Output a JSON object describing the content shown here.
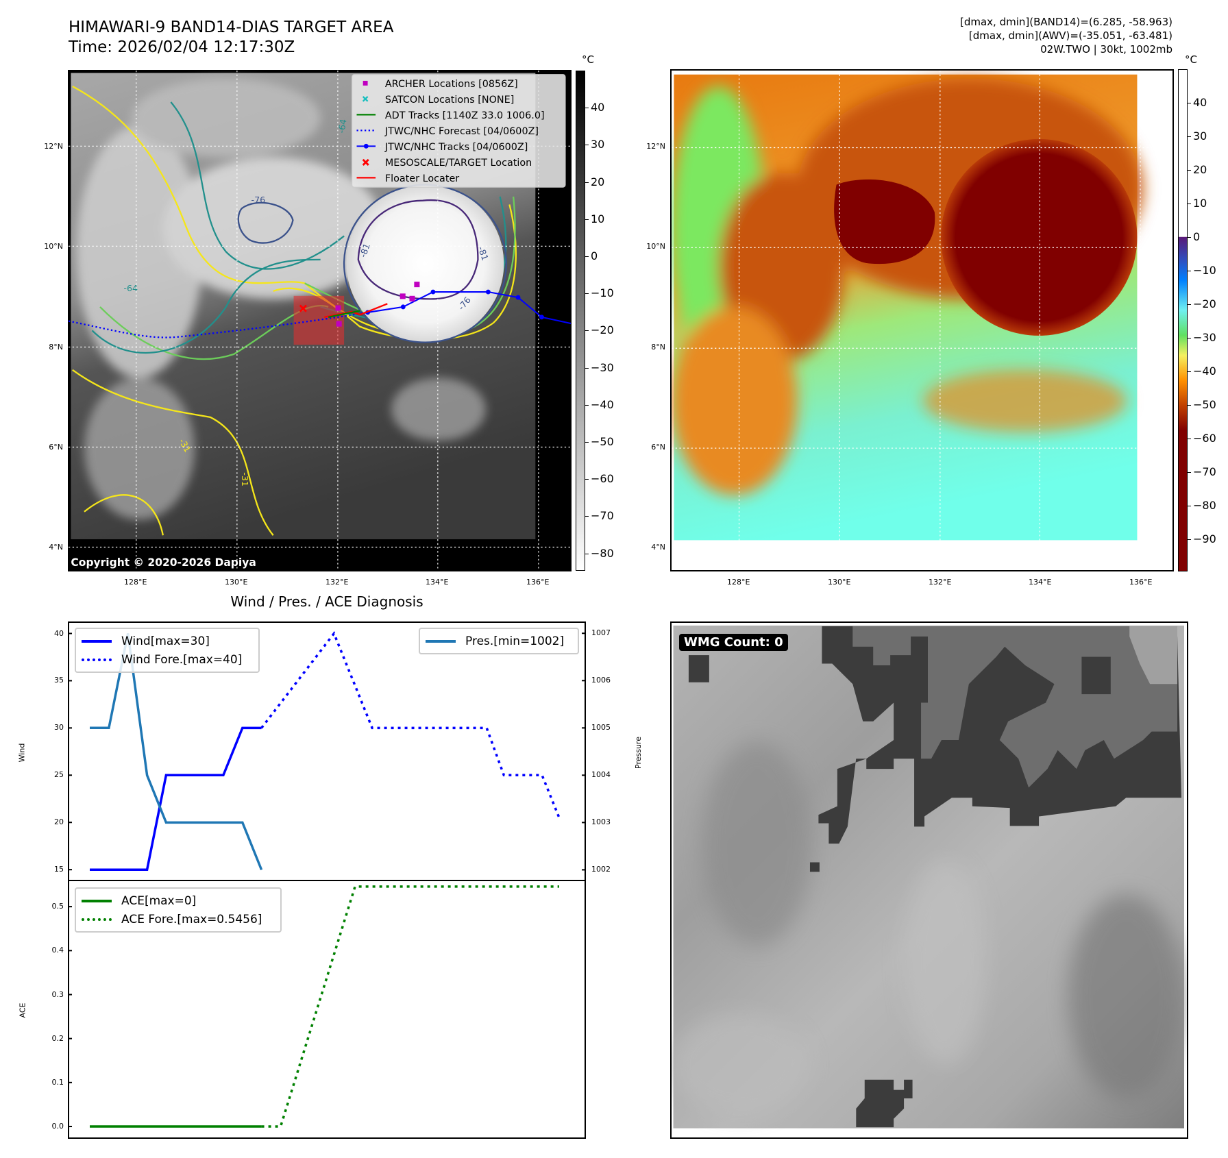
{
  "header": {
    "title": "HIMAWARI-9 BAND14-DIAS TARGET AREA",
    "time": "Time: 2026/02/04 12:17:30Z",
    "info_lines": [
      "[dmax, dmin](BAND14)=(6.285, -58.963)",
      "[dmax, dmin](AWV)=(-35.051, -63.481)",
      "02W.TWO | 30kt, 1002mb"
    ]
  },
  "maps": {
    "lat_ticks": [
      "12°N",
      "10°N",
      "8°N",
      "6°N",
      "4°N"
    ],
    "lon_ticks": [
      "128°E",
      "130°E",
      "132°E",
      "134°E",
      "136°E"
    ],
    "unit": "°C",
    "copyright": "Copyright © 2020-2026 Dapiya",
    "legend": [
      "ARCHER Locations [0856Z]",
      "SATCON Locations [NONE]",
      "ADT Tracks [1140Z 33.0 1006.0]",
      "JTWC/NHC Forecast [04/0600Z]",
      "JTWC/NHC Tracks [04/0600Z]",
      "MESOSCALE/TARGET Location",
      "Floater Locater"
    ],
    "contour_labels": [
      "-64",
      "-76",
      "-81",
      "-81",
      "-76",
      "-64",
      "-31",
      "-31"
    ],
    "left_colorbar": {
      "ticks": [
        40,
        30,
        20,
        10,
        0,
        -10,
        -20,
        -30,
        -40,
        -50,
        -60,
        -70,
        -80
      ],
      "range": [
        50,
        -84.7
      ]
    },
    "right_colorbar": {
      "ticks": [
        40,
        30,
        20,
        10,
        0,
        -10,
        -20,
        -30,
        -40,
        -50,
        -60,
        -70,
        -80,
        -90
      ],
      "range": [
        50,
        -99.6
      ]
    },
    "colors": {
      "archer": "#c000c0",
      "satcon": "#17bfbf",
      "adt": "#008000",
      "jtwc": "#0000ff",
      "target": "#ff0000"
    }
  },
  "wmg": {
    "label": "WMG Count: 0"
  },
  "chart_data": [
    {
      "type": "line",
      "title": "Wind / Pres. / ACE Diagnosis",
      "ylabel": "Wind",
      "ylabel_right": "Pressure",
      "xlim": [
        -1.15,
        26
      ],
      "ylim": [
        13.78,
        41.27
      ],
      "ylim_right": [
        1001.76,
        1007.25
      ],
      "yticks": [
        "15",
        "20",
        "25",
        "30",
        "35",
        "40"
      ],
      "yticks_right": [
        "1002",
        "1003",
        "1004",
        "1005",
        "1006",
        "1007"
      ],
      "series": [
        {
          "name": "Wind[max=30]",
          "axis": "left",
          "style": "solid",
          "color": "#0000ff",
          "x": [
            0,
            1,
            2,
            3,
            4,
            5,
            6,
            7,
            8,
            9
          ],
          "values": [
            15,
            15,
            15,
            15,
            25,
            25,
            25,
            25,
            30,
            30
          ]
        },
        {
          "name": "Wind Fore.[max=40]",
          "axis": "left",
          "style": "dotted",
          "color": "#0000ff",
          "x": [
            9,
            12.8,
            14.8,
            20.8,
            21.7,
            23.7,
            24.6
          ],
          "values": [
            30,
            40,
            30,
            30,
            25,
            25,
            20.5
          ]
        },
        {
          "name": "Pres.[min=1002]",
          "axis": "right",
          "style": "solid",
          "color": "#1f77b4",
          "x": [
            0,
            1,
            2,
            3,
            4,
            8,
            9
          ],
          "values": [
            1005,
            1005,
            1007,
            1004,
            1003,
            1003,
            1002
          ]
        }
      ]
    },
    {
      "type": "line",
      "ylabel": "ACE",
      "xlim": [
        -1.15,
        26
      ],
      "ylim": [
        -0.028,
        0.561
      ],
      "yticks": [
        "0.0",
        "0.1",
        "0.2",
        "0.3",
        "0.4",
        "0.5"
      ],
      "series": [
        {
          "name": "ACE[max=0]",
          "style": "solid",
          "color": "#008000",
          "x": [
            0,
            9
          ],
          "values": [
            0,
            0
          ]
        },
        {
          "name": "ACE Fore.[max=0.5456]",
          "style": "dotted",
          "color": "#008000",
          "x": [
            9,
            10,
            13.9,
            24.6
          ],
          "values": [
            0,
            0,
            0.5456,
            0.5456
          ]
        }
      ]
    }
  ]
}
